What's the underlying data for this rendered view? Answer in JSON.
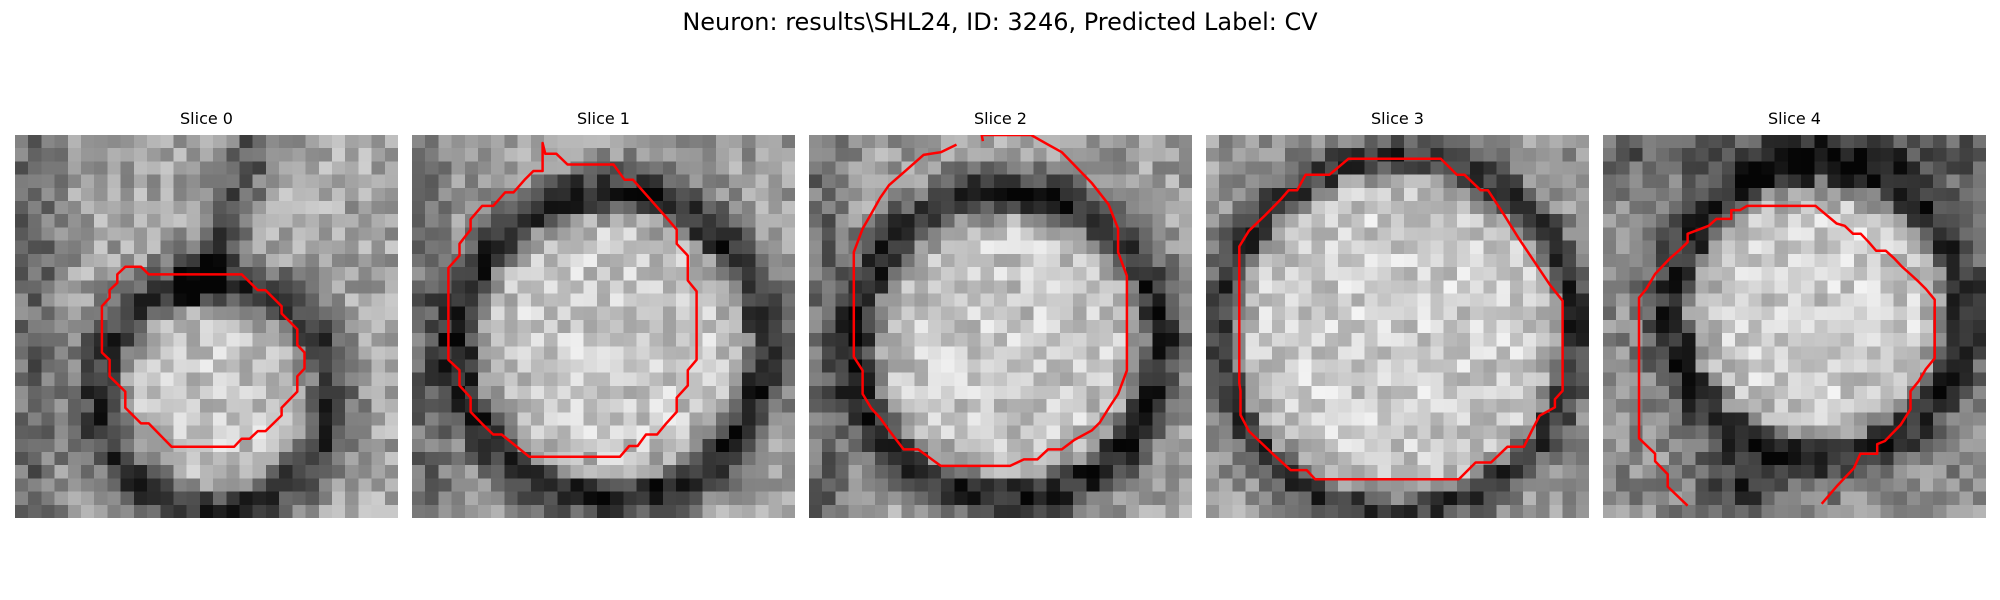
{
  "figure": {
    "title": "Neuron: results\\SHL24, ID: 3246, Predicted Label: CV"
  },
  "colors": {
    "contour": "#ff0000",
    "background": "#ffffff"
  },
  "slices": [
    {
      "title": "Slice 0",
      "pattern": "offset-cell",
      "contour": [
        [
          34.9,
          36.4
        ],
        [
          59.2,
          36.4
        ],
        [
          63.4,
          40.5
        ],
        [
          65.4,
          40.5
        ],
        [
          69.6,
          44.7
        ],
        [
          69.6,
          46.6
        ],
        [
          73.7,
          50.7
        ],
        [
          73.7,
          54.8
        ],
        [
          75.6,
          56.8
        ],
        [
          75.6,
          61.0
        ],
        [
          73.7,
          63.0
        ],
        [
          73.7,
          67.0
        ],
        [
          69.6,
          71.2
        ],
        [
          69.6,
          73.2
        ],
        [
          65.4,
          77.3
        ],
        [
          63.4,
          77.3
        ],
        [
          61.3,
          79.3
        ],
        [
          59.2,
          79.3
        ],
        [
          57.2,
          81.4
        ],
        [
          40.9,
          81.4
        ],
        [
          34.9,
          75.3
        ],
        [
          32.9,
          75.3
        ],
        [
          28.8,
          71.2
        ],
        [
          28.8,
          67.0
        ],
        [
          24.7,
          63.0
        ],
        [
          24.7,
          58.7
        ],
        [
          22.7,
          56.8
        ],
        [
          22.7,
          44.7
        ],
        [
          24.7,
          42.5
        ],
        [
          24.7,
          40.5
        ],
        [
          26.7,
          38.6
        ],
        [
          26.7,
          36.4
        ],
        [
          28.8,
          34.4
        ],
        [
          32.9,
          34.4
        ],
        [
          34.9,
          36.4
        ]
      ],
      "open": false
    },
    {
      "title": "Slice 1",
      "pattern": "centered-cell",
      "contour": [
        [
          34.1,
          2.1
        ],
        [
          34.8,
          4.9
        ],
        [
          37.7,
          4.9
        ],
        [
          40.6,
          7.7
        ],
        [
          52.6,
          7.7
        ],
        [
          55.5,
          11.7
        ],
        [
          57.7,
          11.7
        ],
        [
          66.3,
          21.4
        ],
        [
          69.1,
          24.7
        ],
        [
          69.1,
          28.4
        ],
        [
          72.0,
          31.5
        ],
        [
          72.0,
          38.0
        ],
        [
          74.3,
          40.8
        ],
        [
          74.3,
          58.7
        ],
        [
          72.0,
          61.4
        ],
        [
          72.0,
          65.4
        ],
        [
          69.1,
          68.6
        ],
        [
          69.1,
          72.3
        ],
        [
          66.3,
          75.4
        ],
        [
          64.0,
          78.2
        ],
        [
          61.1,
          78.2
        ],
        [
          58.9,
          81.2
        ],
        [
          56.7,
          81.2
        ],
        [
          54.3,
          84.0
        ],
        [
          30.6,
          84.0
        ],
        [
          23.4,
          78.2
        ],
        [
          21.2,
          78.2
        ],
        [
          18.3,
          75.4
        ],
        [
          15.3,
          72.3
        ],
        [
          15.3,
          68.6
        ],
        [
          12.4,
          65.4
        ],
        [
          12.4,
          61.4
        ],
        [
          9.5,
          58.7
        ],
        [
          9.5,
          34.7
        ],
        [
          12.4,
          31.5
        ],
        [
          12.4,
          28.4
        ],
        [
          15.3,
          24.7
        ],
        [
          15.3,
          22.0
        ],
        [
          18.3,
          18.5
        ],
        [
          21.2,
          18.5
        ],
        [
          24.3,
          15.0
        ],
        [
          26.5,
          15.0
        ],
        [
          29.4,
          11.7
        ],
        [
          31.7,
          9.4
        ],
        [
          34.1,
          9.4
        ]
      ],
      "open": false
    },
    {
      "title": "Slice 2",
      "pattern": "centered-cell",
      "contour": [
        [
          45.4,
          1.6
        ],
        [
          45.1,
          0.0
        ],
        [
          58.0,
          0.0
        ],
        [
          62.4,
          2.5
        ],
        [
          66.0,
          4.5
        ],
        [
          73.9,
          12.6
        ],
        [
          78.2,
          18.1
        ],
        [
          80.7,
          24.5
        ],
        [
          80.7,
          30.6
        ],
        [
          83.0,
          36.8
        ],
        [
          83.0,
          61.5
        ],
        [
          80.7,
          67.6
        ],
        [
          78.2,
          71.4
        ],
        [
          75.9,
          75.1
        ],
        [
          73.9,
          77.1
        ],
        [
          69.3,
          79.6
        ],
        [
          66.0,
          82.1
        ],
        [
          62.4,
          82.1
        ],
        [
          59.6,
          84.7
        ],
        [
          56.1,
          84.7
        ],
        [
          52.5,
          86.4
        ],
        [
          34.4,
          86.4
        ],
        [
          28.5,
          82.1
        ],
        [
          24.7,
          82.1
        ],
        [
          20.9,
          77.1
        ],
        [
          18.6,
          73.9
        ],
        [
          16.3,
          71.4
        ],
        [
          14.0,
          67.6
        ],
        [
          14.0,
          61.5
        ],
        [
          11.7,
          57.9
        ],
        [
          11.7,
          30.6
        ],
        [
          14.0,
          24.5
        ],
        [
          16.3,
          20.5
        ],
        [
          18.6,
          16.4
        ],
        [
          20.9,
          13.1
        ],
        [
          25.0,
          9.5
        ],
        [
          29.9,
          5.2
        ],
        [
          34.4,
          4.5
        ],
        [
          38.5,
          2.5
        ]
      ],
      "open": true
    },
    {
      "title": "Slice 3",
      "pattern": "big-cell",
      "contour": [
        [
          37.2,
          6.2
        ],
        [
          61.3,
          6.2
        ],
        [
          65.5,
          10.4
        ],
        [
          67.5,
          10.4
        ],
        [
          71.7,
          14.4
        ],
        [
          73.6,
          14.4
        ],
        [
          77.8,
          20.8
        ],
        [
          81.6,
          26.9
        ],
        [
          85.7,
          33.0
        ],
        [
          89.8,
          39.1
        ],
        [
          93.1,
          43.3
        ],
        [
          93.1,
          66.8
        ],
        [
          91.1,
          69.0
        ],
        [
          91.1,
          71.1
        ],
        [
          87.1,
          73.3
        ],
        [
          85.0,
          77.3
        ],
        [
          83.0,
          81.4
        ],
        [
          78.7,
          81.4
        ],
        [
          74.4,
          85.5
        ],
        [
          70.4,
          85.5
        ],
        [
          66.0,
          89.9
        ],
        [
          28.5,
          89.9
        ],
        [
          26.3,
          87.5
        ],
        [
          22.1,
          87.5
        ],
        [
          17.6,
          83.4
        ],
        [
          13.4,
          79.4
        ],
        [
          11.2,
          77.3
        ],
        [
          9.0,
          73.1
        ],
        [
          9.0,
          66.8
        ],
        [
          8.7,
          64.8
        ],
        [
          8.7,
          29.1
        ],
        [
          11.2,
          25.0
        ],
        [
          15.4,
          21.0
        ],
        [
          19.6,
          16.7
        ],
        [
          21.6,
          14.4
        ],
        [
          23.8,
          14.4
        ],
        [
          26.0,
          10.4
        ],
        [
          32.2,
          10.4
        ]
      ],
      "open": false
    },
    {
      "title": "Slice 4",
      "pattern": "right-cell",
      "contour": [
        [
          22.1,
          96.8
        ],
        [
          16.9,
          91.8
        ],
        [
          16.9,
          88.6
        ],
        [
          13.6,
          85.2
        ],
        [
          13.6,
          83.2
        ],
        [
          9.4,
          79.2
        ],
        [
          9.4,
          42.5
        ],
        [
          11.3,
          40.2
        ],
        [
          13.6,
          36.3
        ],
        [
          17.6,
          32.1
        ],
        [
          19.8,
          30.2
        ],
        [
          22.1,
          28.0
        ],
        [
          22.1,
          25.8
        ],
        [
          27.6,
          23.7
        ],
        [
          29.6,
          21.9
        ],
        [
          33.5,
          21.9
        ],
        [
          33.5,
          19.6
        ],
        [
          35.8,
          19.6
        ],
        [
          37.6,
          18.5
        ],
        [
          55.5,
          18.5
        ],
        [
          61.0,
          23.1
        ],
        [
          63.1,
          23.7
        ],
        [
          65.3,
          25.8
        ],
        [
          67.3,
          25.8
        ],
        [
          69.4,
          28.0
        ],
        [
          71.3,
          30.2
        ],
        [
          73.8,
          30.2
        ],
        [
          75.9,
          32.1
        ],
        [
          78.1,
          34.4
        ],
        [
          80.2,
          36.3
        ],
        [
          82.4,
          38.3
        ],
        [
          84.3,
          40.2
        ],
        [
          86.6,
          43.0
        ],
        [
          86.6,
          58.3
        ],
        [
          84.3,
          61.1
        ],
        [
          82.4,
          64.3
        ],
        [
          80.3,
          66.9
        ],
        [
          80.3,
          71.6
        ],
        [
          77.7,
          75.7
        ],
        [
          73.6,
          79.9
        ],
        [
          71.6,
          80.7
        ],
        [
          71.6,
          83.2
        ],
        [
          69.4,
          83.2
        ],
        [
          69.3,
          83.2
        ],
        [
          67.2,
          83.2
        ],
        [
          65.5,
          87.0
        ],
        [
          61.3,
          91.4
        ],
        [
          57.1,
          96.3
        ]
      ],
      "open": true
    }
  ]
}
